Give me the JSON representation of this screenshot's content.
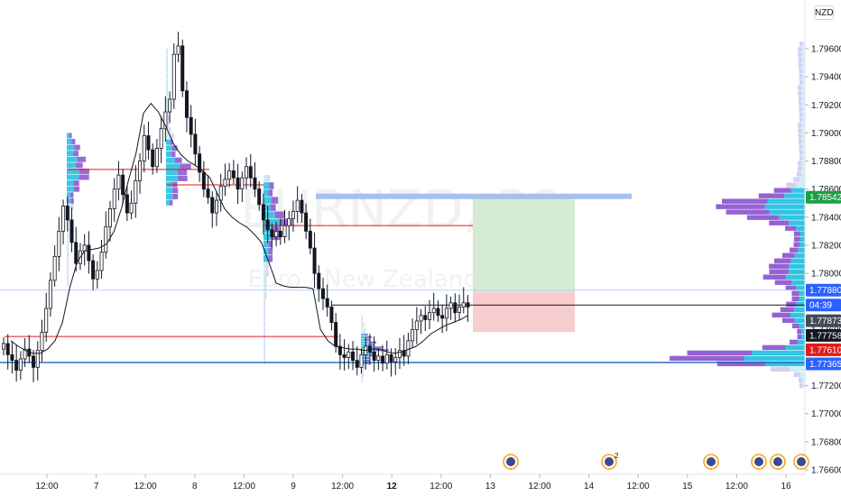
{
  "currency_badge": "NZD",
  "watermark": {
    "symbol": "EURNZD, 30",
    "name": "Euro / New Zealand Dollar"
  },
  "colors": {
    "up": "#131722",
    "down": "#131722",
    "bg": "#ffffff",
    "red_line": "#e01b1b",
    "blue_line": "#2962ff",
    "vp_cyan": "#27c1e0",
    "vp_purple": "#8e5ad2",
    "vp_light": "#c9c4ee",
    "target_zone": "#d3ecd3",
    "stop_zone": "#f8cdcd",
    "band": "#9fb9ea",
    "event_icon": "#f6a623"
  },
  "price_tags": [
    {
      "label": "1.78542",
      "value": 1.78542,
      "color": "#1e9e45"
    },
    {
      "label": "1.77880",
      "value": 1.7788,
      "color": "#2962ff"
    },
    {
      "label": "04:39",
      "value": 1.77774,
      "color": "#2962ff"
    },
    {
      "label": "1.77873",
      "value": 1.77662,
      "color": "#454a58"
    },
    {
      "label": "1.77758",
      "value": 1.77558,
      "color": "#131722"
    },
    {
      "label": "1.77610",
      "value": 1.77455,
      "color": "#e01b1b"
    },
    {
      "label": "1.77365",
      "value": 1.77355,
      "color": "#2962ff"
    }
  ],
  "event_icons": [
    {
      "x_index": 0,
      "badge": ""
    },
    {
      "x_index": 1,
      "badge": "2"
    },
    {
      "x_index": 2,
      "badge": ""
    },
    {
      "x_index": 3,
      "badge": ""
    },
    {
      "x_index": 4,
      "badge": ""
    },
    {
      "x_index": 5,
      "badge": ""
    }
  ],
  "chart_data": {
    "type": "candlestick",
    "symbol": "EURNZD",
    "timeframe": "30",
    "y_axis": {
      "ticks": [
        "1.79600",
        "1.79400",
        "1.79200",
        "1.79000",
        "1.78800",
        "1.78600",
        "1.78400",
        "1.78200",
        "1.78000",
        "1.77600",
        "1.77200",
        "1.77000",
        "1.76800",
        "1.76600"
      ],
      "tick_values": [
        1.796,
        1.794,
        1.792,
        1.79,
        1.788,
        1.786,
        1.784,
        1.782,
        1.78,
        1.776,
        1.772,
        1.77,
        1.768,
        1.766
      ],
      "ylim": [
        1.7655,
        1.7985
      ]
    },
    "x_axis": {
      "ticks": [
        "12:00",
        "7",
        "12:00",
        "8",
        "12:00",
        "9",
        "12:00",
        "12",
        "12:00",
        "13",
        "12:00",
        "14",
        "12:00",
        "15",
        "12:00",
        "16"
      ],
      "tick_bold": [
        false,
        false,
        false,
        false,
        false,
        false,
        false,
        true,
        false,
        false,
        false,
        false,
        false,
        false,
        false,
        false
      ]
    },
    "levels": [
      {
        "name": "",
        "value": 1.7874,
        "style": "red"
      },
      {
        "name": "",
        "value": 1.7863,
        "style": "red"
      },
      {
        "name": "",
        "value": 1.7834,
        "style": "red"
      },
      {
        "name": "",
        "value": 1.7755,
        "style": "red"
      },
      {
        "name": "",
        "value": 1.77774,
        "style": "black"
      },
      {
        "name": "",
        "value": 1.7788,
        "style": "lightblue"
      },
      {
        "name": "",
        "value": 1.77365,
        "style": "blue"
      }
    ],
    "position": {
      "entry": 1.7787,
      "target": 1.78542,
      "stop": 1.77582
    },
    "close_path": [
      1.775,
      1.7742,
      1.7738,
      1.7731,
      1.7739,
      1.7746,
      1.7741,
      1.7733,
      1.7745,
      1.7758,
      1.7775,
      1.7795,
      1.7812,
      1.783,
      1.7848,
      1.7838,
      1.7822,
      1.7807,
      1.7816,
      1.782,
      1.7809,
      1.7796,
      1.7802,
      1.7815,
      1.7833,
      1.7846,
      1.786,
      1.787,
      1.7856,
      1.7843,
      1.785,
      1.7866,
      1.788,
      1.7898,
      1.7888,
      1.7876,
      1.7889,
      1.7903,
      1.7915,
      1.7924,
      1.7956,
      1.7962,
      1.793,
      1.7911,
      1.7899,
      1.7885,
      1.7872,
      1.786,
      1.7854,
      1.7843,
      1.7852,
      1.7862,
      1.7867,
      1.7873,
      1.7868,
      1.786,
      1.7868,
      1.7876,
      1.7868,
      1.786,
      1.7849,
      1.7838,
      1.7831,
      1.7826,
      1.783,
      1.7826,
      1.7834,
      1.7839,
      1.7844,
      1.7852,
      1.7843,
      1.783,
      1.7818,
      1.78,
      1.7789,
      1.7782,
      1.7776,
      1.7765,
      1.7748,
      1.7742,
      1.774,
      1.7744,
      1.7738,
      1.7733,
      1.7742,
      1.7748,
      1.7744,
      1.7738,
      1.7741,
      1.7736,
      1.7742,
      1.7737,
      1.774,
      1.7745,
      1.7741,
      1.7752,
      1.776,
      1.7766,
      1.777,
      1.7767,
      1.7772,
      1.7775,
      1.777,
      1.7768,
      1.7775,
      1.7779,
      1.7772,
      1.7776,
      1.7779,
      1.7776
    ],
    "vwap_path": [
      1.7752,
      1.7748,
      1.7745,
      1.7743,
      1.7743,
      1.7746,
      1.7752,
      1.7765,
      1.779,
      1.7808,
      1.7816,
      1.7817,
      1.7818,
      1.7821,
      1.783,
      1.7846,
      1.7867,
      1.7886,
      1.7914,
      1.7921,
      1.7915,
      1.7905,
      1.7893,
      1.7885,
      1.788,
      1.7877,
      1.7873,
      1.7868,
      1.7857,
      1.7846,
      1.784,
      1.7836,
      1.7833,
      1.7828,
      1.7822,
      1.7808,
      1.7793,
      1.7791,
      1.779,
      1.779,
      1.779,
      1.7789,
      1.776,
      1.7752,
      1.7748,
      1.7747,
      1.7746,
      1.7746,
      1.7745,
      1.7746,
      1.7746,
      1.7744,
      1.7743,
      1.7744,
      1.7746,
      1.7748,
      1.7752,
      1.7757,
      1.776,
      1.7763,
      1.7765,
      1.7767,
      1.777
    ]
  }
}
